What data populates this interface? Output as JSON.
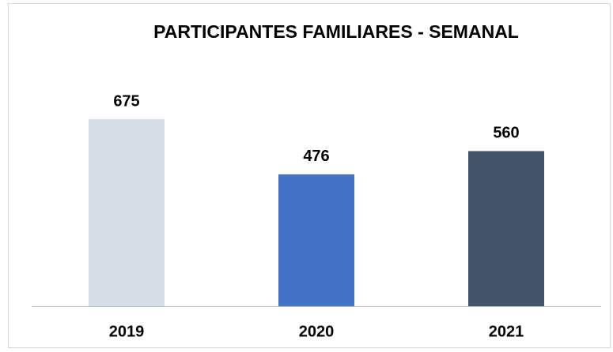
{
  "chart_data": {
    "type": "bar",
    "title": "PARTICIPANTES FAMILIARES -  SEMANAL",
    "categories": [
      "2019",
      "2020",
      "2021"
    ],
    "values": [
      675,
      476,
      560
    ],
    "colors": [
      "#d6dce5",
      "#4472c4",
      "#44546a"
    ],
    "ylim": [
      0,
      1000
    ]
  }
}
